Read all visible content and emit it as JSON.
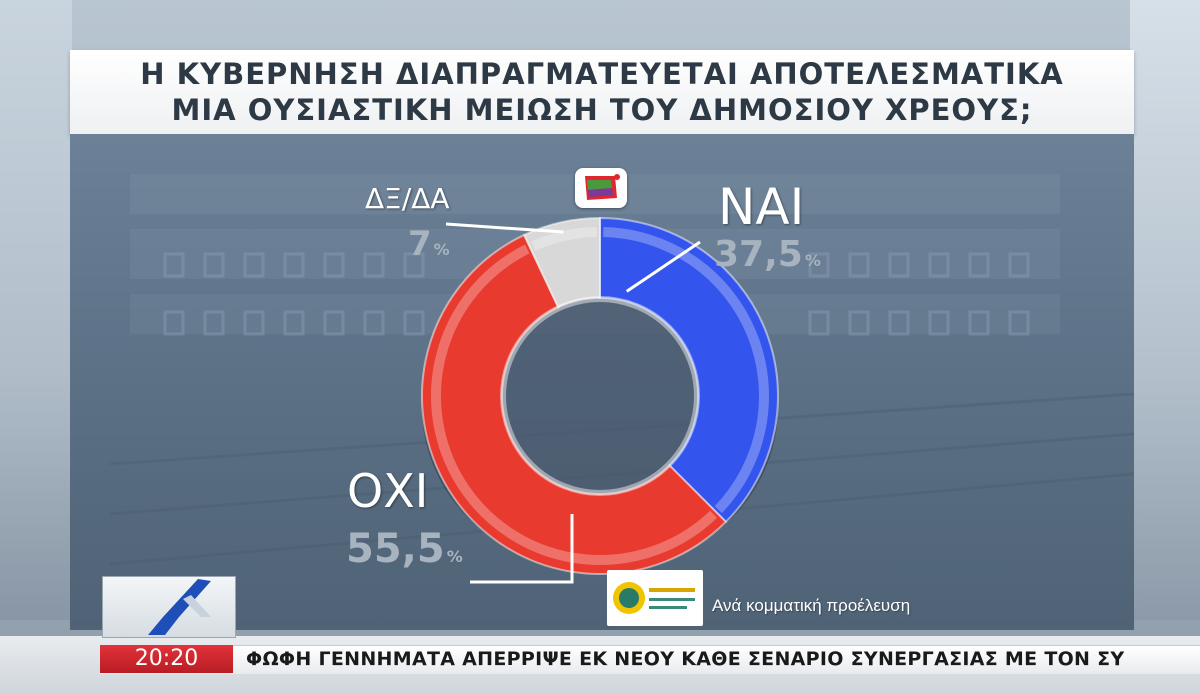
{
  "title": {
    "line1": "Η ΚΥΒΕΡΝΗΣΗ ΔΙΑΠΡΑΓΜΑΤΕΥΕΤΑΙ ΑΠΟΤΕΛΕΣΜΑΤΙΚΑ",
    "line2": "ΜΙΑ ΟΥΣΙΑΣΤΙΚΗ ΜΕΙΩΣΗ ΤΟΥ ΔΗΜΟΣΙΟΥ ΧΡΕΟΥΣ;"
  },
  "chart_data": {
    "type": "pie",
    "title": "Η ΚΥΒΕΡΝΗΣΗ ΔΙΑΠΡΑΓΜΑΤΕΥΕΤΑΙ ΑΠΟΤΕΛΕΣΜΑΤΙΚΑ ΜΙΑ ΟΥΣΙΑΣΤΙΚΗ ΜΕΙΩΣΗ ΤΟΥ ΔΗΜΟΣΙΟΥ ΧΡΕΟΥΣ;",
    "slices": [
      {
        "label": "ΝΑΙ",
        "value": 37.5,
        "display": "37,5",
        "color": "#3355ee"
      },
      {
        "label": "ΟΧΙ",
        "value": 55.5,
        "display": "55,5",
        "color": "#e83a2e"
      },
      {
        "label": "ΔΞ/ΔΑ",
        "value": 7,
        "display": "7",
        "color": "#d8d8d8"
      }
    ],
    "unit": "%",
    "style": "donut"
  },
  "source_note": "Ανά κομματική προέλευση",
  "ticker": {
    "time": "20:20",
    "headline": "ΦΩΦΗ ΓΕΝΝΗΜΑΤΑ ΑΠΕΡΡΙΨΕ ΕΚ ΝΕΟΥ ΚΑΘΕ ΣΕΝΑΡΙΟ ΣΥΝΕΡΓΑΣΙΑΣ ΜΕ ΤΟΝ ΣΥ"
  },
  "icons": {
    "party_logo": "syriza-flag-icon",
    "pollster_logo": "pollster-logo",
    "channel_logo": "channel-logo"
  }
}
